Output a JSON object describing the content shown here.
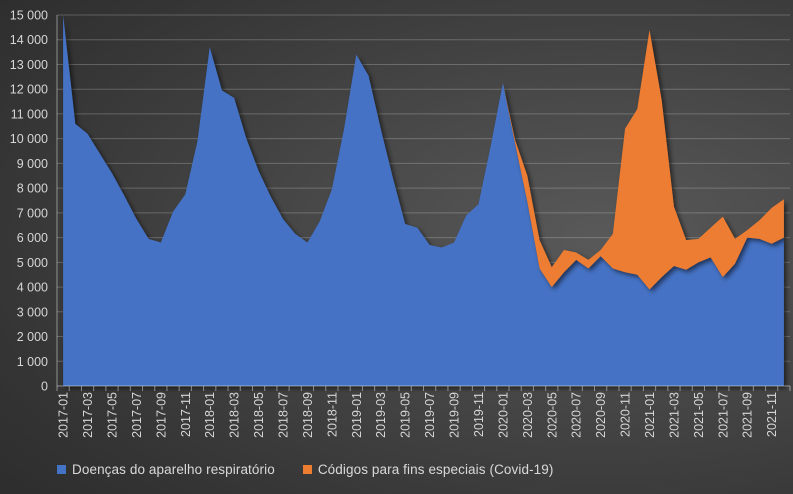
{
  "chart_data": {
    "type": "area",
    "stacked": true,
    "title": "",
    "xlabel": "",
    "ylabel": "",
    "x": [
      "2017-01",
      "2017-02",
      "2017-03",
      "2017-04",
      "2017-05",
      "2017-06",
      "2017-07",
      "2017-08",
      "2017-09",
      "2017-10",
      "2017-11",
      "2017-12",
      "2018-01",
      "2018-02",
      "2018-03",
      "2018-04",
      "2018-05",
      "2018-06",
      "2018-07",
      "2018-08",
      "2018-09",
      "2018-10",
      "2018-11",
      "2018-12",
      "2019-01",
      "2019-02",
      "2019-03",
      "2019-04",
      "2019-05",
      "2019-06",
      "2019-07",
      "2019-08",
      "2019-09",
      "2019-10",
      "2019-11",
      "2019-12",
      "2020-01",
      "2020-02",
      "2020-03",
      "2020-04",
      "2020-05",
      "2020-06",
      "2020-07",
      "2020-08",
      "2020-09",
      "2020-10",
      "2020-11",
      "2020-12",
      "2021-01",
      "2021-02",
      "2021-03",
      "2021-04",
      "2021-05",
      "2021-06",
      "2021-07",
      "2021-08",
      "2021-09",
      "2021-10",
      "2021-11",
      "2021-12"
    ],
    "series": [
      {
        "name": "Doenças do aparelho respiratório",
        "color": "#4472C4",
        "values": [
          15000,
          10600,
          10200,
          9400,
          8600,
          7700,
          6750,
          5950,
          5800,
          7050,
          7750,
          9900,
          13700,
          11950,
          11650,
          10000,
          8700,
          7650,
          6750,
          6150,
          5800,
          6650,
          7950,
          10400,
          13400,
          12550,
          10400,
          8400,
          6550,
          6400,
          5700,
          5600,
          5800,
          6900,
          7350,
          9700,
          12250,
          9800,
          7450,
          4750,
          4000,
          4600,
          5100,
          4750,
          5250,
          4750,
          4600,
          4500,
          3900,
          4400,
          4850,
          4700,
          5000,
          5200,
          4400,
          4950,
          6000,
          5950,
          5750,
          6000
        ]
      },
      {
        "name": "Códigos para fins especiais (Covid-19)",
        "color": "#ED7D31",
        "values": [
          0,
          0,
          0,
          0,
          0,
          0,
          0,
          0,
          0,
          0,
          0,
          0,
          0,
          0,
          0,
          0,
          0,
          0,
          0,
          0,
          0,
          0,
          0,
          0,
          0,
          0,
          0,
          0,
          0,
          0,
          0,
          0,
          0,
          0,
          0,
          0,
          0,
          150,
          1050,
          1150,
          800,
          900,
          300,
          350,
          250,
          1400,
          5800,
          6700,
          10500,
          7150,
          2400,
          1200,
          950,
          1200,
          2450,
          1000,
          300,
          750,
          1450,
          1550
        ]
      }
    ],
    "ylim": [
      0,
      15000
    ],
    "y_tick_step": 1000,
    "x_label_every": 2,
    "grid": true,
    "legend_position": "bottom",
    "number_format": "space-thousands",
    "style": {
      "axis_text_color": "#d6d6d6",
      "gridline_color": "rgba(255,255,255,0.22)",
      "axis_line_color": "rgba(255,255,255,0.45)",
      "background_dark": "#262626",
      "background_light": "#595959"
    }
  }
}
